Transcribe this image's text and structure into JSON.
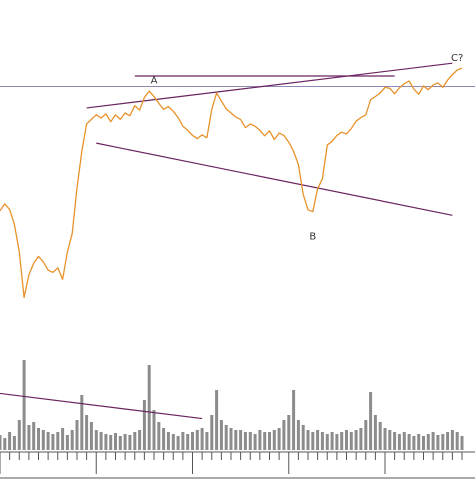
{
  "chart_data": {
    "type": "line",
    "title": "",
    "xlabel": "",
    "ylabel": "",
    "grid": false,
    "legend": "none",
    "colors": {
      "price": "#e8922a",
      "trendline": "#6b2360",
      "volume": "#8c8c8c",
      "horizontal_line": "#8f87b8",
      "axis": "#555555"
    },
    "annotations": [
      {
        "text": "A",
        "x": 32,
        "y": 101.5
      },
      {
        "text": "B",
        "x": 65,
        "y": 71.8
      },
      {
        "text": "C?",
        "x": 95,
        "y": 106.5
      }
    ],
    "series": [
      {
        "values": [
          75,
          76.5,
          75.3,
          72,
          66,
          56,
          61,
          63.5,
          65,
          63.8,
          62,
          61.5,
          62.5,
          60,
          66,
          70,
          80,
          88,
          94,
          95,
          96,
          95.3,
          96.2,
          94.5,
          96,
          95,
          96.4,
          95.8,
          98,
          97,
          99.8,
          101.2,
          100,
          98.5,
          97.2,
          97.8,
          96.8,
          95.4,
          93.5,
          92.6,
          91.5,
          90.8,
          91.6,
          91,
          97.2,
          100.8,
          99,
          97.3,
          96.4,
          95.5,
          95,
          93.2,
          94,
          93.5,
          92.6,
          91.4,
          92.5,
          90.6,
          92,
          91.5,
          90,
          88,
          85.1,
          78.6,
          75.2,
          74.8,
          79.8,
          82,
          89.4,
          90.2,
          91.5,
          92.2,
          91.8,
          93,
          94.6,
          95.4,
          96,
          99.3,
          100,
          100.8,
          102,
          101.8,
          100.6,
          101.9,
          102.8,
          103.4,
          101.6,
          100.5,
          102.3,
          101.5,
          102.5,
          103,
          102,
          103.6,
          104.8,
          105.8,
          106.2
        ],
        "volume": [
          15,
          12,
          18,
          14,
          30,
          90,
          25,
          28,
          22,
          20,
          18,
          16,
          18,
          22,
          15,
          20,
          30,
          55,
          35,
          28,
          20,
          18,
          16,
          15,
          17,
          14,
          16,
          15,
          18,
          20,
          50,
          85,
          40,
          28,
          22,
          18,
          16,
          14,
          18,
          16,
          18,
          20,
          22,
          18,
          35,
          60,
          30,
          25,
          22,
          20,
          20,
          18,
          18,
          16,
          20,
          18,
          18,
          20,
          22,
          30,
          35,
          60,
          30,
          25,
          20,
          18,
          20,
          18,
          16,
          18,
          16,
          18,
          20,
          18,
          20,
          22,
          30,
          58,
          35,
          28,
          22,
          20,
          18,
          16,
          18,
          16,
          14,
          16,
          14,
          16,
          18,
          15,
          16,
          18,
          20,
          18,
          14
        ]
      }
    ],
    "reference_lines": [
      {
        "kind": "horizontal",
        "y": 102.2
      },
      {
        "kind": "segment",
        "from": [
          28,
          104.5
        ],
        "to": [
          82,
          104.5
        ]
      },
      {
        "kind": "segment",
        "from": [
          18,
          97.5
        ],
        "to": [
          94,
          107.3
        ]
      },
      {
        "kind": "segment",
        "from": [
          20,
          89.8
        ],
        "to": [
          94,
          74
        ]
      },
      {
        "kind": "segment",
        "from": [
          0,
          35
        ],
        "to": [
          42,
          29.5
        ]
      }
    ]
  }
}
